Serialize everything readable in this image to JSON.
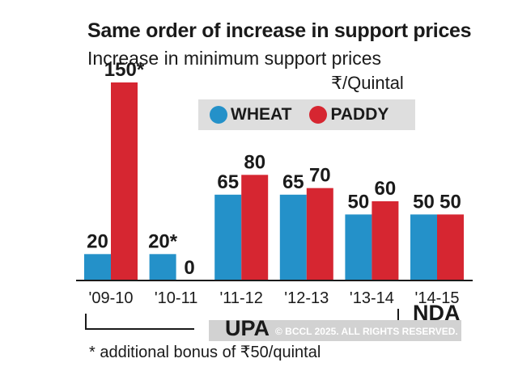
{
  "chart_data": {
    "type": "bar",
    "title": "Same order of increase in support prices",
    "subtitle": "Increase in minimum support prices",
    "unit": "₹/Quintal",
    "categories": [
      "'09-10",
      "'10-11",
      "'11-12",
      "'12-13",
      "'13-14",
      "'14-15"
    ],
    "series": [
      {
        "name": "WHEAT",
        "color": "#2491c9",
        "values": [
          20,
          20,
          65,
          65,
          50,
          50
        ],
        "labels": [
          "20",
          "20*",
          "65",
          "65",
          "50",
          "50"
        ]
      },
      {
        "name": "PADDY",
        "color": "#d62631",
        "values": [
          150,
          0,
          80,
          70,
          60,
          50
        ],
        "labels": [
          "150*",
          "0",
          "80",
          "70",
          "60",
          "50"
        ]
      }
    ],
    "ylim": [
      0,
      150
    ],
    "groups": [
      {
        "name": "UPA",
        "categories": [
          "'09-10",
          "'10-11",
          "'11-12",
          "'12-13",
          "'13-14"
        ]
      },
      {
        "name": "NDA",
        "categories": [
          "'14-15"
        ]
      }
    ],
    "footnote": "* additional bonus of ₹50/quintal",
    "copyright": "© BCCL 2025. ALL RIGHTS RESERVED."
  }
}
